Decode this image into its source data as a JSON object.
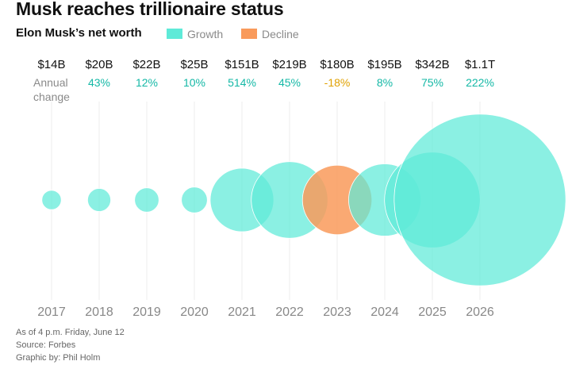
{
  "header": {
    "title": "Musk reaches trillionaire status",
    "subtitle": "Elon Musk’s net worth"
  },
  "legend": {
    "growth": {
      "label": "Growth",
      "color": "#5eead8"
    },
    "decline": {
      "label": "Decline",
      "color": "#f99a5b"
    }
  },
  "row_label": {
    "line1": "Annual",
    "line2": "change"
  },
  "footer": {
    "line1": "As of 4 p.m. Friday, June 12",
    "line2": "Source: Forbes",
    "line3": "Graphic by: Phil Holm"
  },
  "colors": {
    "growth_fill": "#5eead8",
    "decline_fill": "#f99a5b",
    "growth_text": "#14b8a6",
    "decline_text": "#e0a100",
    "gridline": "#eeeeee"
  },
  "chart_data": {
    "type": "bubble",
    "title": "Musk reaches trillionaire status",
    "subtitle": "Elon Musk’s net worth",
    "x": [
      "2017",
      "2018",
      "2019",
      "2020",
      "2021",
      "2022",
      "2023",
      "2024",
      "2025",
      "2026"
    ],
    "net_worth_billions": [
      14,
      20,
      22,
      25,
      151,
      219,
      180,
      195,
      342,
      1100
    ],
    "value_labels": [
      "$14B",
      "$20B",
      "$22B",
      "$25B",
      "$151B",
      "$219B",
      "$180B",
      "$195B",
      "$342B",
      "$1.1T"
    ],
    "annual_change_labels": [
      "43%",
      "12%",
      "10%",
      "514%",
      "45%",
      "-18%",
      "8%",
      "75%",
      "222%"
    ],
    "trend": [
      "growth",
      "growth",
      "growth",
      "growth",
      "growth",
      "growth",
      "decline",
      "growth",
      "growth",
      "growth"
    ],
    "legend": [
      "Growth",
      "Decline"
    ],
    "grid": true
  }
}
